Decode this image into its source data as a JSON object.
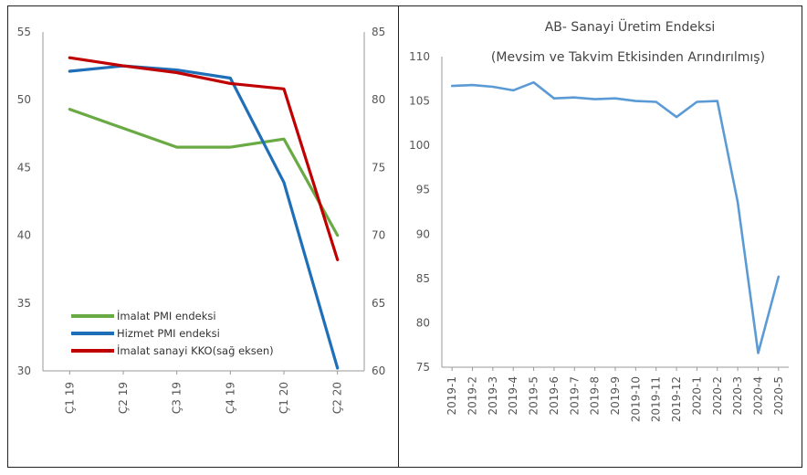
{
  "colors": {
    "green": "#6aaa45",
    "blue": "#1f6fb8",
    "red": "#c00000",
    "lightblue": "#5b9bd5",
    "border": "#222222"
  },
  "chart_data": [
    {
      "type": "line",
      "categories": [
        "Ç1 19",
        "Ç2 19",
        "Ç3 19",
        "Ç4 19",
        "Ç1 20",
        "Ç2 20"
      ],
      "ylim_left": [
        30,
        55
      ],
      "yticks_left": [
        30,
        35,
        40,
        45,
        50,
        55
      ],
      "ylim_right": [
        60,
        85
      ],
      "yticks_right": [
        60,
        65,
        70,
        75,
        80,
        85
      ],
      "series": [
        {
          "name": "İmalat PMI endeksi",
          "axis": "left",
          "color": "#6aaa45",
          "values": [
            49.3,
            47.9,
            46.5,
            46.5,
            47.1,
            40.0
          ]
        },
        {
          "name": "Hizmet PMI endeksi",
          "axis": "left",
          "color": "#1f6fb8",
          "values": [
            52.1,
            52.5,
            52.2,
            51.6,
            43.9,
            30.2
          ]
        },
        {
          "name": "İmalat sanayi KKO(sağ eksen)",
          "axis": "right",
          "color": "#c00000",
          "values": [
            83.1,
            82.5,
            82.0,
            81.2,
            80.8,
            68.2
          ]
        }
      ],
      "legend_position": "bottom-left",
      "grid": false
    },
    {
      "type": "line",
      "title": "AB- Sanayi Üretim Endeksi",
      "subtitle": "(Mevsim ve Takvim Etkisinden Arındırılmış)",
      "categories": [
        "2019-1",
        "2019-2",
        "2019-3",
        "2019-4",
        "2019-5",
        "2019-6",
        "2019-7",
        "2019-8",
        "2019-9",
        "2019-10",
        "2019-11",
        "2019-12",
        "2020-1",
        "2020-2",
        "2020-3",
        "2020-4",
        "2020-5"
      ],
      "ylim": [
        75,
        110
      ],
      "yticks": [
        75,
        80,
        85,
        90,
        95,
        100,
        105,
        110
      ],
      "series": [
        {
          "color": "#5b9bd5",
          "values": [
            106.7,
            106.8,
            106.6,
            106.2,
            107.1,
            105.3,
            105.4,
            105.2,
            105.3,
            105.0,
            104.9,
            103.2,
            104.9,
            105.0,
            93.6,
            76.6,
            85.2
          ]
        }
      ],
      "grid": false
    }
  ]
}
